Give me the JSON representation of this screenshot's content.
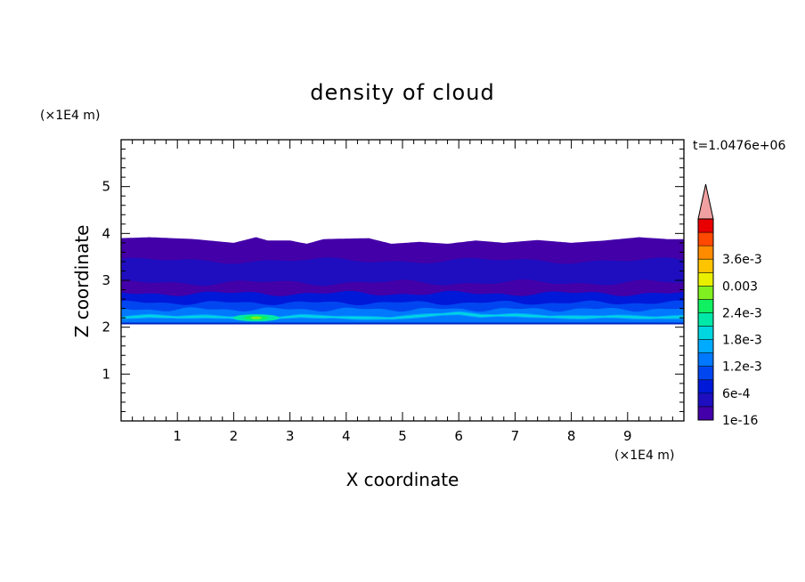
{
  "chart_data": {
    "type": "heatmap",
    "title": "density of cloud",
    "xlabel": "X coordinate",
    "ylabel": "Z coordinate",
    "x_unit": "(×1E4 m)",
    "y_unit": "(×1E4 m)",
    "time_label": "t=1.0476e+06",
    "xlim": [
      0,
      10
    ],
    "ylim": [
      0,
      6
    ],
    "x_ticks": [
      1,
      2,
      3,
      4,
      5,
      6,
      7,
      8,
      9
    ],
    "y_ticks": [
      1,
      2,
      3,
      4,
      5
    ],
    "grid": false,
    "colorbar": {
      "labels": [
        "1e-16",
        "6e-4",
        "1.2e-3",
        "1.8e-3",
        "2.4e-3",
        "0.003",
        "3.6e-3"
      ],
      "colors": [
        "#4400a8",
        "#1e0ec0",
        "#0018d8",
        "#0046f0",
        "#0078ff",
        "#00aaff",
        "#00d6e0",
        "#00e8a8",
        "#10f060",
        "#80f020",
        "#e8f000",
        "#ffc400",
        "#ff8c00",
        "#ff4800",
        "#e80000"
      ],
      "overflow_color": "#f0a0a0"
    },
    "cloud_layer": {
      "z_bottom": 2.08,
      "z_top_approx": 3.9,
      "max_density_x": 2.4,
      "max_density_z": 2.2
    },
    "top_contour": [
      [
        0,
        3.9
      ],
      [
        0.5,
        3.92
      ],
      [
        1.3,
        3.88
      ],
      [
        2.0,
        3.8
      ],
      [
        2.4,
        3.92
      ],
      [
        2.6,
        3.85
      ],
      [
        3.0,
        3.85
      ],
      [
        3.3,
        3.78
      ],
      [
        3.6,
        3.88
      ],
      [
        4.4,
        3.9
      ],
      [
        4.8,
        3.78
      ],
      [
        5.3,
        3.82
      ],
      [
        5.8,
        3.78
      ],
      [
        6.3,
        3.85
      ],
      [
        6.8,
        3.8
      ],
      [
        7.4,
        3.86
      ],
      [
        8.0,
        3.8
      ],
      [
        8.6,
        3.85
      ],
      [
        9.2,
        3.92
      ],
      [
        9.7,
        3.88
      ],
      [
        10,
        3.88
      ]
    ],
    "bright_band": [
      [
        0,
        2.2
      ],
      [
        0.5,
        2.24
      ],
      [
        1.0,
        2.21
      ],
      [
        1.5,
        2.23
      ],
      [
        2.0,
        2.2
      ],
      [
        2.4,
        2.17
      ],
      [
        2.8,
        2.2
      ],
      [
        3.2,
        2.24
      ],
      [
        3.6,
        2.22
      ],
      [
        4.2,
        2.2
      ],
      [
        4.8,
        2.19
      ],
      [
        5.4,
        2.25
      ],
      [
        6.0,
        2.3
      ],
      [
        6.4,
        2.24
      ],
      [
        7.0,
        2.26
      ],
      [
        7.6,
        2.22
      ],
      [
        8.2,
        2.21
      ],
      [
        8.8,
        2.23
      ],
      [
        9.4,
        2.2
      ],
      [
        10,
        2.22
      ]
    ]
  }
}
